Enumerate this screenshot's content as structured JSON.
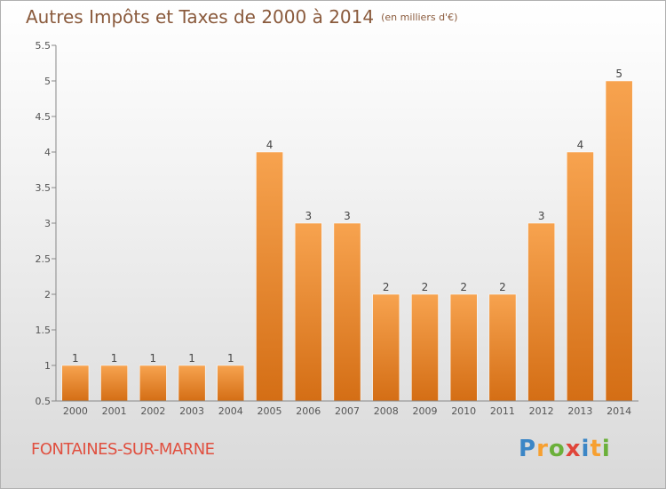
{
  "header": {
    "title": "Autres Impôts et Taxes de 2000 à 2014",
    "unit": "(en milliers d'€)"
  },
  "footer": {
    "commune": "FONTAINES-SUR-MARNE",
    "logo": {
      "letters": [
        "P",
        "r",
        "o",
        "x",
        "i",
        "t",
        "i"
      ],
      "colors": [
        "#3b86c6",
        "#f7a030",
        "#6bb03a",
        "#e0453a",
        "#3b86c6",
        "#f7a030",
        "#6bb03a"
      ]
    }
  },
  "chart_data": {
    "type": "bar",
    "title": "Autres Impôts et Taxes de 2000 à 2014",
    "subtitle": "(en milliers d'€)",
    "categories": [
      "2000",
      "2001",
      "2002",
      "2003",
      "2004",
      "2005",
      "2006",
      "2007",
      "2008",
      "2009",
      "2010",
      "2011",
      "2012",
      "2013",
      "2014"
    ],
    "values": [
      1,
      1,
      1,
      1,
      1,
      4,
      3,
      3,
      2,
      2,
      2,
      2,
      3,
      4,
      5
    ],
    "data_labels": [
      "1",
      "1",
      "1",
      "1",
      "1",
      "4",
      "3",
      "3",
      "2",
      "2",
      "2",
      "2",
      "3",
      "4",
      "5"
    ],
    "ylim": [
      0.5,
      5.5
    ],
    "yticks": [
      0.5,
      1,
      1.5,
      2,
      2.5,
      3,
      3.5,
      4,
      4.5,
      5,
      5.5
    ],
    "ytick_labels": [
      "0.5",
      "1",
      "1.5",
      "2",
      "2.5",
      "3",
      "3.5",
      "4",
      "4.5",
      "5",
      "5.5"
    ],
    "grid": false,
    "colors": {
      "bar_top": "#f7a34f",
      "bar_bottom": "#d46e15",
      "axis": "#888888"
    }
  }
}
